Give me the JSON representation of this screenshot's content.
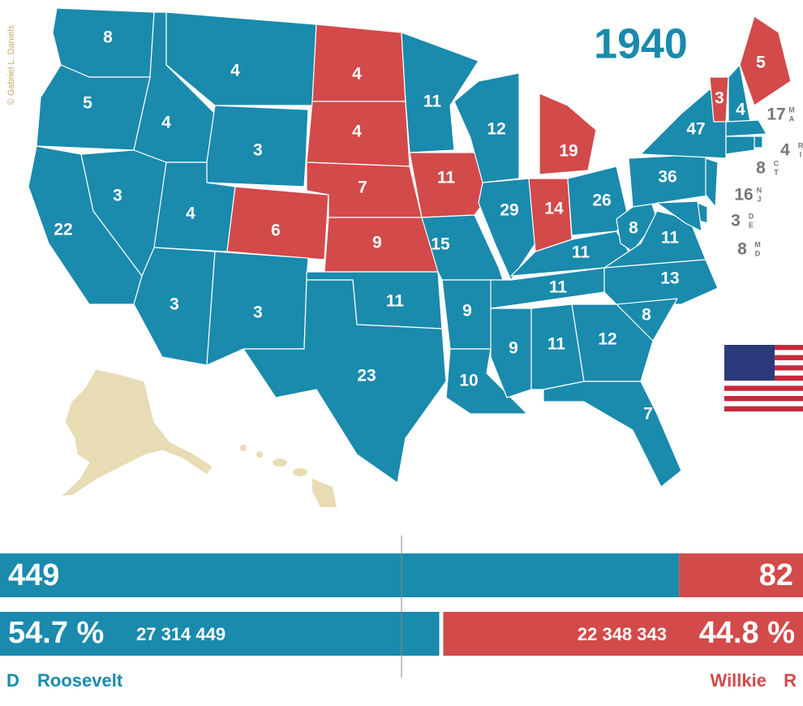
{
  "title": "1940",
  "credit": "© Gabriel L. Daniels",
  "candidates": [
    {
      "party": "D",
      "name": "Roosevelt",
      "color": "#1a8aad",
      "electoral_votes": 449,
      "percent": 54.7,
      "percent_label": "54.7 %",
      "popular_vote_label": "27 314 449"
    },
    {
      "party": "R",
      "name": "Willkie",
      "color": "#d24a4a",
      "electoral_votes": 82,
      "percent": 44.8,
      "percent_label": "44.8 %",
      "popular_vote_label": "22 348 343"
    }
  ],
  "states": [
    {
      "votes": 8,
      "winner": "D"
    },
    {
      "votes": 5,
      "winner": "D"
    },
    {
      "votes": 22,
      "winner": "D"
    },
    {
      "votes": 3,
      "winner": "D"
    },
    {
      "votes": 4,
      "winner": "D"
    },
    {
      "votes": 4,
      "winner": "D"
    },
    {
      "votes": 3,
      "winner": "D"
    },
    {
      "votes": 4,
      "winner": "D"
    },
    {
      "votes": 3,
      "winner": "D"
    },
    {
      "votes": 6,
      "winner": "R"
    },
    {
      "votes": 3,
      "winner": "D"
    },
    {
      "votes": 4,
      "winner": "R"
    },
    {
      "votes": 4,
      "winner": "R"
    },
    {
      "votes": 7,
      "winner": "R"
    },
    {
      "votes": 9,
      "winner": "R"
    },
    {
      "votes": 11,
      "winner": "D"
    },
    {
      "votes": 23,
      "winner": "D"
    },
    {
      "votes": 11,
      "winner": "D"
    },
    {
      "votes": 11,
      "winner": "R"
    },
    {
      "votes": 15,
      "winner": "D"
    },
    {
      "votes": 9,
      "winner": "D"
    },
    {
      "votes": 10,
      "winner": "D"
    },
    {
      "votes": 12,
      "winner": "D"
    },
    {
      "votes": 29,
      "winner": "D"
    },
    {
      "votes": 9,
      "winner": "D"
    },
    {
      "votes": 11,
      "winner": "D"
    },
    {
      "votes": 11,
      "winner": "D"
    },
    {
      "votes": 11,
      "winner": "D"
    },
    {
      "votes": 14,
      "winner": "R"
    },
    {
      "votes": 19,
      "winner": "R"
    },
    {
      "votes": 26,
      "winner": "D"
    },
    {
      "votes": 8,
      "winner": "D"
    },
    {
      "votes": 11,
      "winner": "D"
    },
    {
      "votes": 13,
      "winner": "D"
    },
    {
      "votes": 8,
      "winner": "D"
    },
    {
      "votes": 12,
      "winner": "D"
    },
    {
      "votes": 7,
      "winner": "D"
    },
    {
      "votes": 36,
      "winner": "D"
    },
    {
      "votes": 47,
      "winner": "D"
    },
    {
      "votes": 3,
      "winner": "R"
    },
    {
      "votes": 4,
      "winner": "D"
    },
    {
      "votes": 5,
      "winner": "R"
    },
    {
      "votes": 17,
      "winner": "D",
      "abbr": [
        "M",
        "A"
      ]
    },
    {
      "votes": 4,
      "winner": "D",
      "abbr": [
        "R",
        "I"
      ]
    },
    {
      "votes": 8,
      "winner": "D",
      "abbr": [
        "C",
        "T"
      ]
    },
    {
      "votes": 16,
      "winner": "D",
      "abbr": [
        "N",
        "J"
      ]
    },
    {
      "votes": 3,
      "winner": "D",
      "abbr": [
        "D",
        "E"
      ]
    },
    {
      "votes": 8,
      "winner": "D",
      "abbr": [
        "M",
        "D"
      ]
    }
  ]
}
